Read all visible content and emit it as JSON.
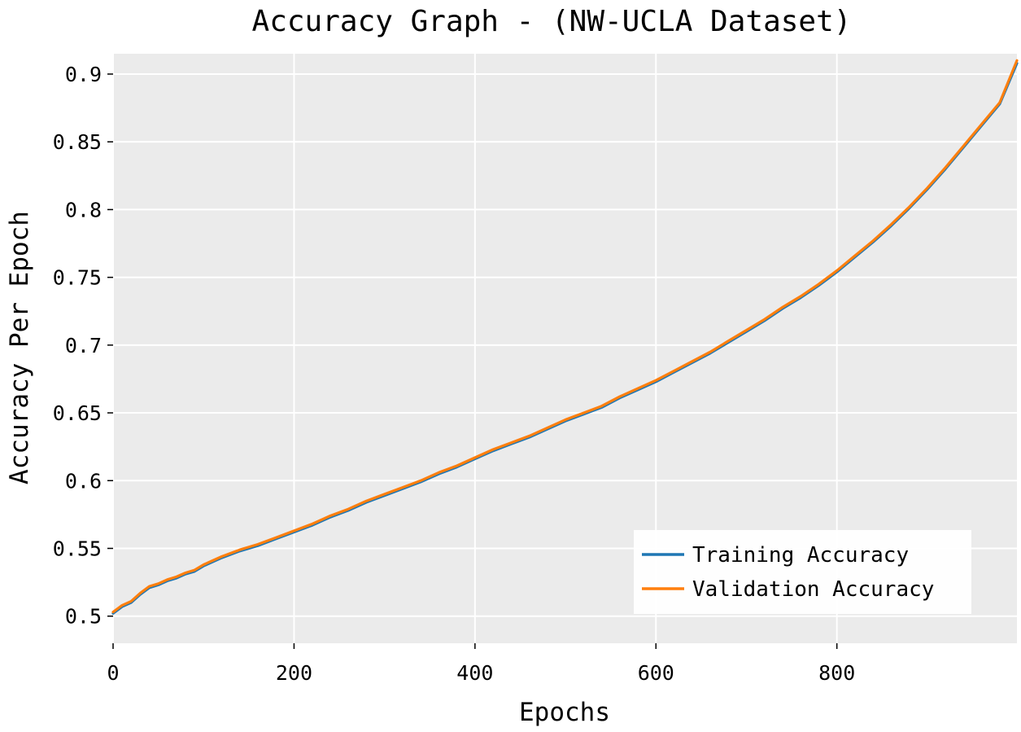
{
  "chart_data": {
    "type": "line",
    "title": "Accuracy Graph - (NW-UCLA Dataset)",
    "xlabel": "Epochs",
    "ylabel": "Accuracy Per Epoch",
    "xlim": [
      0,
      999
    ],
    "ylim": [
      0.48,
      0.915
    ],
    "xticks": [
      0,
      200,
      400,
      600,
      800
    ],
    "xtick_labels": [
      "0",
      "200",
      "400",
      "600",
      "800"
    ],
    "yticks": [
      0.5,
      0.55,
      0.6,
      0.65,
      0.7,
      0.75,
      0.8,
      0.85,
      0.9
    ],
    "ytick_labels": [
      "0.5",
      "0.55",
      "0.6",
      "0.65",
      "0.7",
      "0.75",
      "0.8",
      "0.85",
      "0.9"
    ],
    "grid": true,
    "legend_position": "bottom-right",
    "background_color": "#ebebeb",
    "grid_color": "#ffffff",
    "x": [
      0,
      10,
      20,
      30,
      40,
      50,
      60,
      70,
      80,
      90,
      100,
      120,
      140,
      160,
      180,
      200,
      220,
      240,
      260,
      280,
      300,
      320,
      340,
      360,
      380,
      400,
      420,
      440,
      460,
      480,
      500,
      520,
      540,
      560,
      580,
      600,
      620,
      640,
      660,
      680,
      700,
      720,
      740,
      760,
      780,
      800,
      820,
      840,
      860,
      880,
      900,
      920,
      940,
      960,
      980,
      999
    ],
    "series": [
      {
        "name": "Training Accuracy",
        "color": "#1f77b4",
        "values": [
          0.502,
          0.507,
          0.51,
          0.516,
          0.521,
          0.523,
          0.526,
          0.528,
          0.531,
          0.533,
          0.537,
          0.543,
          0.548,
          0.552,
          0.557,
          0.562,
          0.567,
          0.573,
          0.578,
          0.584,
          0.589,
          0.594,
          0.599,
          0.605,
          0.61,
          0.616,
          0.622,
          0.627,
          0.632,
          0.638,
          0.644,
          0.649,
          0.654,
          0.661,
          0.667,
          0.673,
          0.68,
          0.687,
          0.694,
          0.702,
          0.71,
          0.718,
          0.727,
          0.735,
          0.744,
          0.754,
          0.765,
          0.776,
          0.788,
          0.801,
          0.815,
          0.83,
          0.846,
          0.862,
          0.878,
          0.908
        ]
      },
      {
        "name": "Validation Accuracy",
        "color": "#ff7f0e",
        "values": [
          0.503,
          0.508,
          0.511,
          0.517,
          0.522,
          0.524,
          0.527,
          0.529,
          0.532,
          0.534,
          0.538,
          0.544,
          0.549,
          0.553,
          0.558,
          0.563,
          0.568,
          0.574,
          0.579,
          0.585,
          0.59,
          0.595,
          0.6,
          0.606,
          0.611,
          0.617,
          0.623,
          0.628,
          0.633,
          0.639,
          0.645,
          0.65,
          0.655,
          0.662,
          0.668,
          0.674,
          0.681,
          0.688,
          0.695,
          0.703,
          0.711,
          0.719,
          0.728,
          0.736,
          0.745,
          0.755,
          0.766,
          0.777,
          0.789,
          0.802,
          0.816,
          0.831,
          0.847,
          0.863,
          0.879,
          0.91
        ]
      }
    ]
  }
}
